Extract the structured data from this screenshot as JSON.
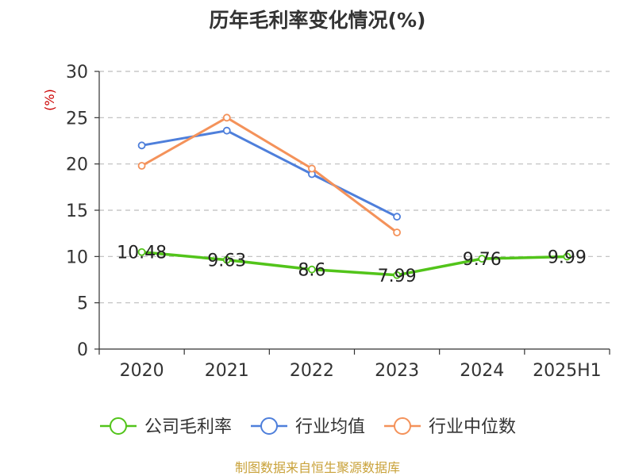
{
  "chart_data": {
    "type": "line",
    "title": "历年毛利率变化情况(%)",
    "ylabel": "(%)",
    "categories": [
      "2020",
      "2021",
      "2022",
      "2023",
      "2024",
      "2025H1"
    ],
    "ylim": [
      0,
      30
    ],
    "yticks": [
      0,
      5,
      10,
      15,
      20,
      25,
      30
    ],
    "grid": true,
    "legend_position": "bottom",
    "series": [
      {
        "name": "公司毛利率",
        "color": "#52c41a",
        "values": [
          10.48,
          9.63,
          8.6,
          7.99,
          9.76,
          9.99
        ],
        "labels": [
          "10.48",
          "9.63",
          "8.6",
          "7.99",
          "9.76",
          "9.99"
        ]
      },
      {
        "name": "行业均值",
        "color": "#4e7fdb",
        "values": [
          22.0,
          23.6,
          18.9,
          14.3,
          null,
          null
        ]
      },
      {
        "name": "行业中位数",
        "color": "#f4925a",
        "values": [
          19.8,
          25.0,
          19.5,
          12.6,
          null,
          null
        ]
      }
    ],
    "source": "制图数据来自恒生聚源数据库"
  }
}
